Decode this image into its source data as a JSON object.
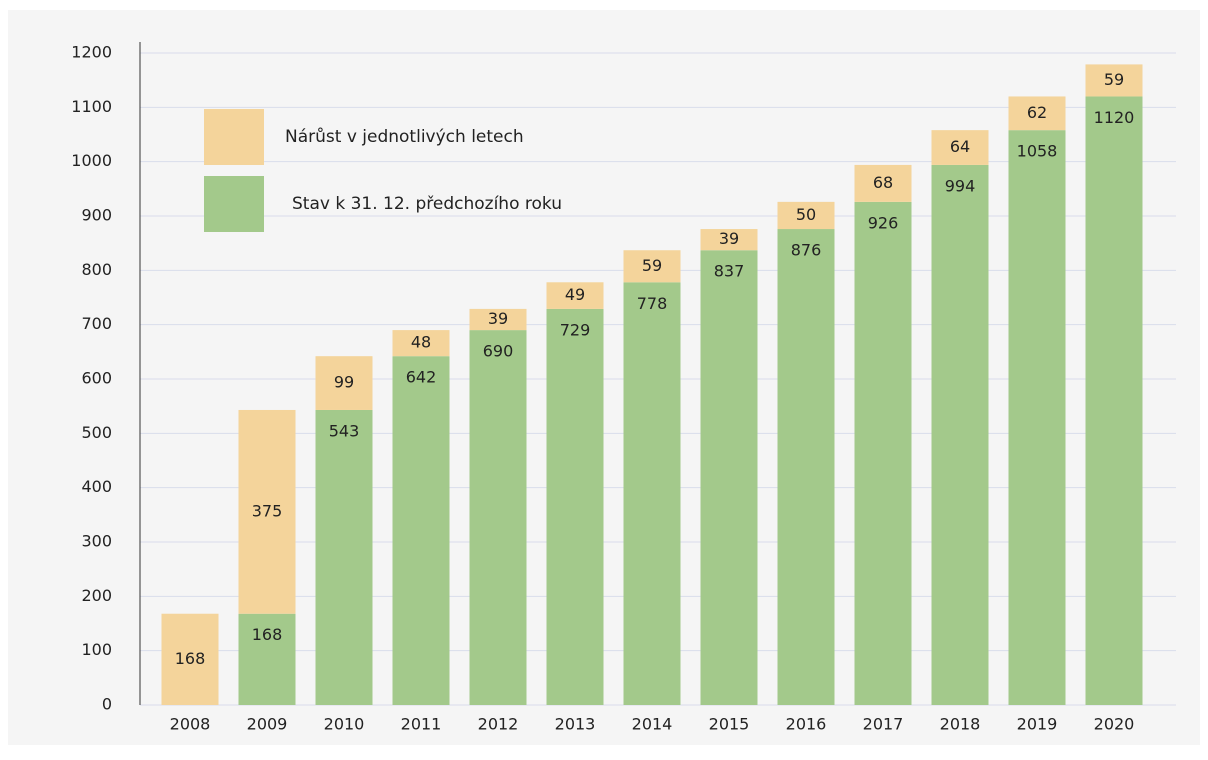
{
  "chart_data": {
    "type": "stacked_bar",
    "categories": [
      "2008",
      "2009",
      "2010",
      "2011",
      "2012",
      "2013",
      "2014",
      "2015",
      "2016",
      "2017",
      "2018",
      "2019",
      "2020"
    ],
    "series": [
      {
        "name": "Stav k 31. 12. předchozího roku",
        "color": "#a3c98b",
        "values": [
          null,
          168,
          543,
          642,
          690,
          729,
          778,
          837,
          876,
          926,
          994,
          1058,
          1120
        ]
      },
      {
        "name": "Nárůst v jednotlivých letech",
        "color": "#f4d49b",
        "values": [
          168,
          375,
          99,
          48,
          39,
          49,
          59,
          39,
          50,
          68,
          64,
          62,
          59
        ]
      }
    ],
    "ylim": [
      0,
      1200
    ],
    "yticks": [
      0,
      100,
      200,
      300,
      400,
      500,
      600,
      700,
      800,
      900,
      1000,
      1100,
      1200
    ],
    "grid": true,
    "legend": "upper left"
  }
}
